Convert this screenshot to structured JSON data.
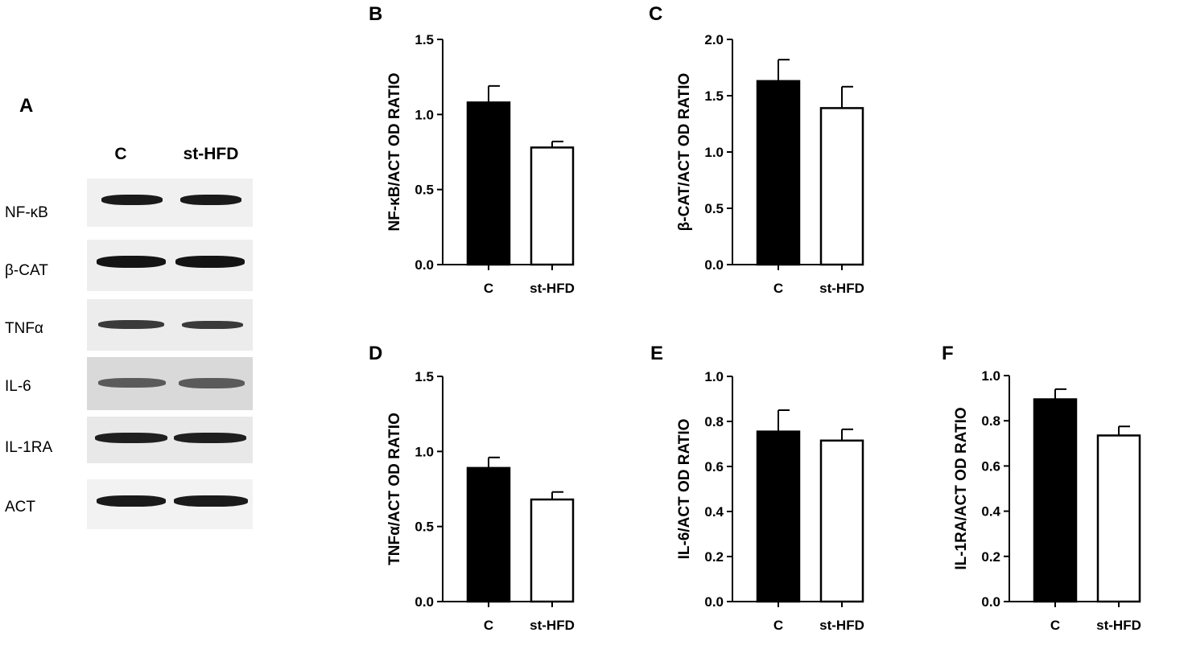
{
  "panels": {
    "a": "A",
    "b": "B",
    "c": "C",
    "d": "D",
    "e": "E",
    "f": "F"
  },
  "blot": {
    "lanes": [
      "C",
      "st-HFD"
    ],
    "rows": [
      {
        "label": "NF-κB",
        "background": "#f0f0f0",
        "band": "#1a1a1a"
      },
      {
        "label": "β-CAT",
        "background": "#eeeeee",
        "band": "#141414"
      },
      {
        "label": "TNFα",
        "background": "#ececec",
        "band": "#3a3a3a"
      },
      {
        "label": "IL-6",
        "background": "#d9d9d9",
        "band": "#5a5a5a"
      },
      {
        "label": "IL-1RA",
        "background": "#e8e8e8",
        "band": "#1f1f1f"
      },
      {
        "label": "ACT",
        "background": "#f2f2f2",
        "band": "#1a1a1a"
      }
    ]
  },
  "chart_data": [
    {
      "panel": "B",
      "type": "bar",
      "categories": [
        "C",
        "st-HFD"
      ],
      "values": [
        1.08,
        0.78
      ],
      "errors": [
        0.11,
        0.04
      ],
      "ylabel": "NF-κB/ACT OD RATIO",
      "ylim": [
        0,
        1.5
      ],
      "yticks": [
        "0.0",
        "0.5",
        "1.0",
        "1.5"
      ],
      "fills": [
        "#000000",
        "#ffffff"
      ]
    },
    {
      "panel": "C",
      "type": "bar",
      "categories": [
        "C",
        "st-HFD"
      ],
      "values": [
        1.63,
        1.39
      ],
      "errors": [
        0.19,
        0.19
      ],
      "ylabel": "β-CAT/ACT OD RATIO",
      "ylim": [
        0,
        2.0
      ],
      "yticks": [
        "0.0",
        "0.5",
        "1.0",
        "1.5",
        "2.0"
      ],
      "fills": [
        "#000000",
        "#ffffff"
      ]
    },
    {
      "panel": "D",
      "type": "bar",
      "categories": [
        "C",
        "st-HFD"
      ],
      "values": [
        0.89,
        0.68
      ],
      "errors": [
        0.07,
        0.05
      ],
      "ylabel": "TNFα/ACT OD RATIO",
      "ylim": [
        0,
        1.5
      ],
      "yticks": [
        "0.0",
        "0.5",
        "1.0",
        "1.5"
      ],
      "fills": [
        "#000000",
        "#ffffff"
      ]
    },
    {
      "panel": "E",
      "type": "bar",
      "categories": [
        "C",
        "st-HFD"
      ],
      "values": [
        0.755,
        0.715
      ],
      "errors": [
        0.095,
        0.05
      ],
      "ylabel": "IL-6/ACT OD RATIO",
      "ylim": [
        0,
        1.0
      ],
      "yticks": [
        "0.0",
        "0.2",
        "0.4",
        "0.6",
        "0.8",
        "1.0"
      ],
      "fills": [
        "#000000",
        "#ffffff"
      ]
    },
    {
      "panel": "F",
      "type": "bar",
      "categories": [
        "C",
        "st-HFD"
      ],
      "values": [
        0.895,
        0.735
      ],
      "errors": [
        0.045,
        0.04
      ],
      "ylabel": "IL-1RA/ACT OD RATIO",
      "ylim": [
        0,
        1.0
      ],
      "yticks": [
        "0.0",
        "0.2",
        "0.4",
        "0.6",
        "0.8",
        "1.0"
      ],
      "fills": [
        "#000000",
        "#ffffff"
      ]
    }
  ]
}
